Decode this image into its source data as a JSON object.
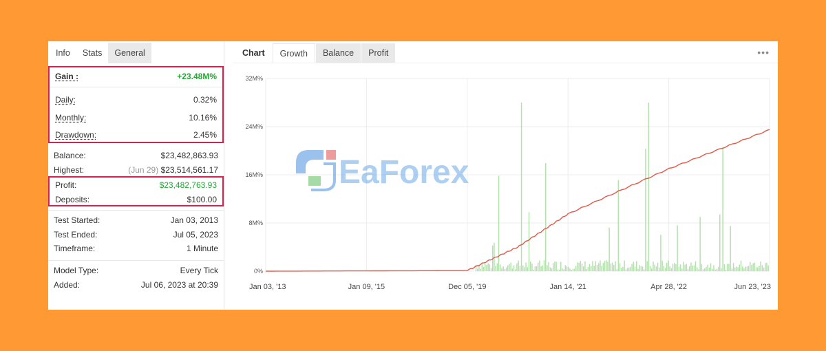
{
  "left_panel": {
    "tabs": [
      {
        "label": "Info"
      },
      {
        "label": "Stats"
      },
      {
        "label": "General"
      }
    ],
    "summary": [
      {
        "label": "Gain :",
        "value": "+23.48M%"
      },
      {
        "label": "Daily:",
        "value": "0.32%"
      },
      {
        "label": "Monthly:",
        "value": "10.16%"
      },
      {
        "label": "Drawdown:",
        "value": "2.45%"
      }
    ],
    "balance": {
      "label": "Balance:",
      "value": "$23,482,863.93"
    },
    "highest": {
      "label": "Highest:",
      "date": "(Jun 29)",
      "value": "$23,514,561.17"
    },
    "profit": {
      "label": "Profit:",
      "value": "$23,482,763.93"
    },
    "deposits": {
      "label": "Deposits:",
      "value": "$100.00"
    },
    "test_started": {
      "label": "Test Started:",
      "value": "Jan 03, 2013"
    },
    "test_ended": {
      "label": "Test Ended:",
      "value": "Jul 05, 2023"
    },
    "timeframe": {
      "label": "Timeframe:",
      "value": "1 Minute"
    },
    "model_type": {
      "label": "Model Type:",
      "value": "Every Tick"
    },
    "added": {
      "label": "Added:",
      "value": "Jul 06, 2023 at 20:39"
    }
  },
  "right_panel": {
    "title": "Chart",
    "tabs": [
      {
        "label": "Growth"
      },
      {
        "label": "Balance"
      },
      {
        "label": "Profit"
      }
    ],
    "more_icon": "ellipsis-icon"
  },
  "watermark": {
    "text": "EaForex"
  },
  "colors": {
    "background": "#FF9933",
    "highlight": "#d6204e",
    "positive": "#22aa33",
    "growth_line": "#e05a4a",
    "volume_bars": "#a8dca0"
  },
  "chart_data": {
    "type": "line",
    "y_ticks": [
      "0%",
      "8M%",
      "16M%",
      "24M%",
      "32M%"
    ],
    "ylim": [
      0,
      32
    ],
    "x_ticks": [
      "Jan 03, '13",
      "Jan 09, '15",
      "Dec 05, '19",
      "Jan 14, '21",
      "Apr 28, '22",
      "Jun 23, '23"
    ],
    "series": [
      {
        "name": "",
        "x": [
          "Jan 03, '13",
          "Dec 05, '19",
          "Jun 2020",
          "Jan 14, '21",
          "Apr 28, '22",
          "Jun 23, '23"
        ],
        "values": [
          0,
          0.1,
          4,
          9.5,
          17,
          23.48
        ]
      }
    ]
  }
}
